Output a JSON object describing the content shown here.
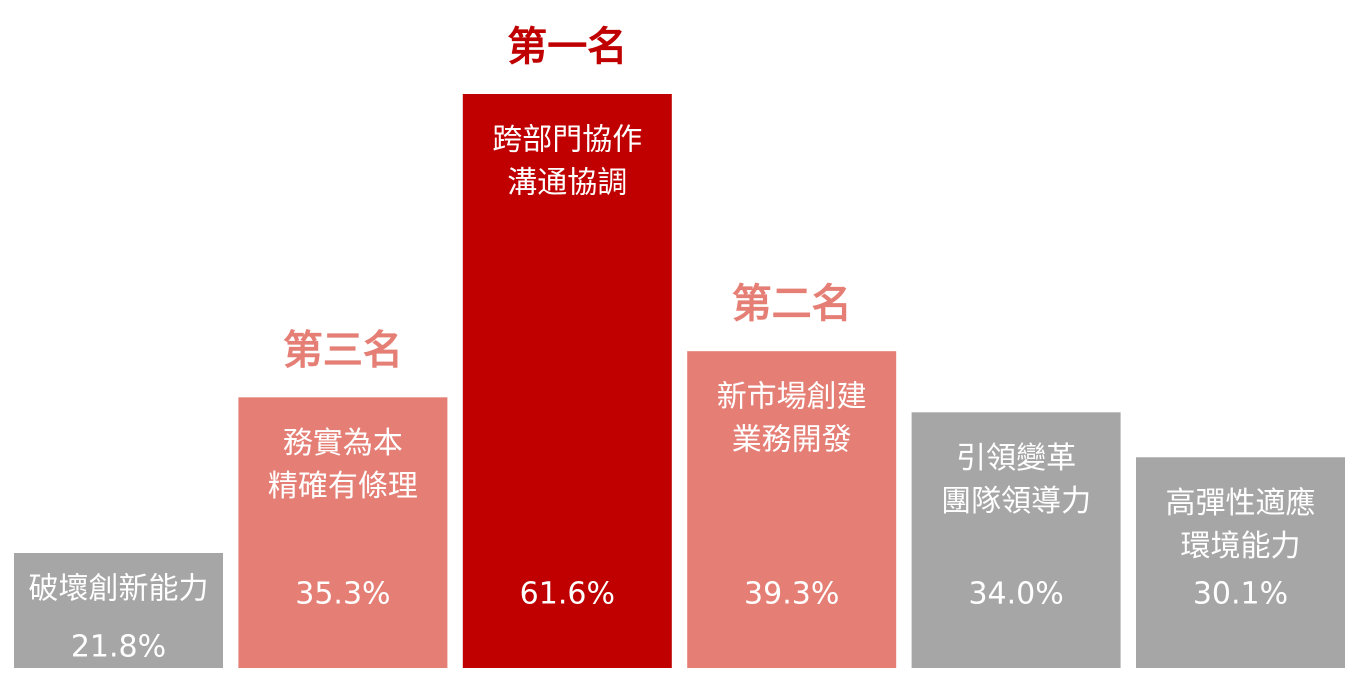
{
  "chart_data": {
    "type": "bar",
    "categories": [
      [
        "破壞創新能力"
      ],
      [
        "務實為本",
        "精確有條理"
      ],
      [
        "跨部門協作",
        "溝通協調"
      ],
      [
        "新市場創建",
        "業務開發"
      ],
      [
        "引領變革",
        "團隊領導力"
      ],
      [
        "高彈性適應",
        "環境能力"
      ]
    ],
    "values": [
      21.8,
      35.3,
      61.6,
      39.3,
      34.0,
      30.1
    ],
    "value_labels": [
      "21.8%",
      "35.3%",
      "61.6%",
      "39.3%",
      "34.0%",
      "30.1%"
    ],
    "rank_labels": [
      null,
      "第三名",
      "第一名",
      "第二名",
      null,
      null
    ],
    "colors": [
      "#a6a6a6",
      "#e57f76",
      "#c00000",
      "#e57f76",
      "#a6a6a6",
      "#a6a6a6"
    ]
  }
}
